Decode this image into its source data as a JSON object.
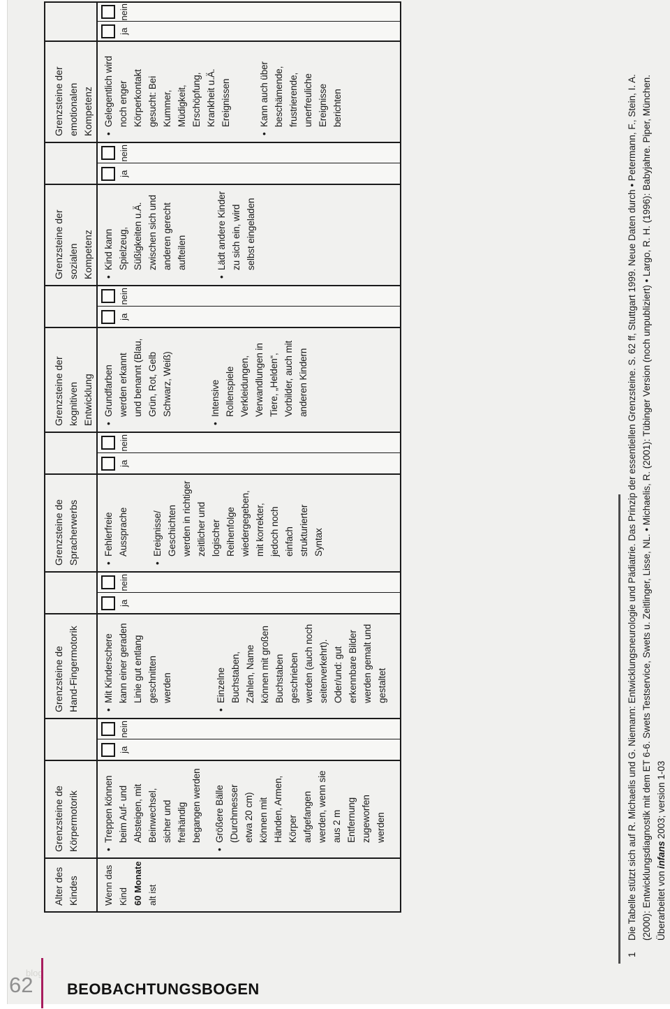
{
  "page": {
    "number": "62",
    "footer_title": "BEOBACHTUNGSBOGEN",
    "watermark": "blog"
  },
  "table": {
    "checkbox_labels": {
      "ja": "ja",
      "nein": "nein"
    },
    "columns": [
      {
        "key": "alter",
        "kind": "category",
        "title": "Alter des\nKindes",
        "age_lines": [
          {
            "t": "Wenn das"
          },
          {
            "t": "Kind"
          },
          {
            "t": "60 Monate",
            "bold": true
          },
          {
            "t": "alt ist"
          }
        ]
      },
      {
        "key": "koerpermotorik",
        "kind": "category",
        "title": "Grenzsteine de\nKörpermotorik",
        "bullets": [
          "Treppen können\nbeim Auf- und\nAbsteigen, mit\nBeinwechsel,\nsicher und\nfreihändig\nbegangen werden",
          "Größere Bälle\n(Durchmesser\netwa 20 cm)\nkönnen mit\nHänden, Armen,\nKörper\naufgefangen\nwerden, wenn sie\naus 2 m\nEntfernung\nzugeworfen\nwerden"
        ]
      },
      {
        "key": "koerpermotorik-janein",
        "kind": "checkbox"
      },
      {
        "key": "handfingermotorik",
        "kind": "category",
        "title": "Grenzsteine de\nHand-Fingermotorik",
        "bullets": [
          "Mit Kinderschere\nkann einer geraden\nLinie gut entlang\ngeschnitten\nwerden",
          "Einzelne\nBuchstaben,\nZahlen, Name\nkönnen mit großen\nBuchstaben\ngeschrieben\nwerden (auch noch\nseitenverkehrt).\nOder/und: gut\nerkennbare Bilder\nwerden gemalt und\ngestaltet"
        ]
      },
      {
        "key": "handfingermotorik-janein",
        "kind": "checkbox"
      },
      {
        "key": "spracherwerb",
        "kind": "category",
        "title": "Grenzsteine de\nSpracherwerbs",
        "bullets": [
          "Fehlerfreie\nAussprache",
          "Ereignisse/\nGeschichten\nwerden in richtiger\nzeitlicher und\nlogischer\nReihenfolge\nwiedergegeben,\nmit korrekter,\njedoch noch\neinfach\nstrukturierter\nSyntax"
        ]
      },
      {
        "key": "spracherwerb-janein",
        "kind": "checkbox"
      },
      {
        "key": "kognitive-entwicklung",
        "kind": "category",
        "title": "Grenzsteine der\nkognitiven\nEntwicklung",
        "bullets": [
          "Grundfarben\nwerden erkannt\nund benannt (Blau,\nGrün, Rot, Gelb\nSchwarz, Weiß)",
          "Intensive\nRollenspiele\nVerkleidungen,\nVerwandlungen in\nTiere, „Helden“,\nVorbilder, auch mit\nanderen Kindern"
        ]
      },
      {
        "key": "kognitive-entwicklung-janein",
        "kind": "checkbox"
      },
      {
        "key": "soziale-kompetenz",
        "kind": "category",
        "title": "Grenzsteine der\nsozialen\nKompetenz",
        "bullets": [
          "Kind kann\nSpielzeug,\nSüßigkeiten u.Ä.\nzwischen sich und\nanderen gerecht\naufteilen",
          "Lädt andere Kinder\nzu sich ein, wird\nselbst eingeladen"
        ]
      },
      {
        "key": "soziale-kompetenz-janein",
        "kind": "checkbox"
      },
      {
        "key": "emotionale-kompetenz",
        "kind": "category",
        "title": "Grenzsteine der\nemotionalen\nKompetenz",
        "bullets": [
          "Gelegentlich wird\nnoch enger\nKörperkontakt\ngesucht: Bei\nKummer,\nMüdigkeit,\nErschöpfung,\nKrankheit u.Ä.\nEreignissen",
          "Kann auch über\nbeschämende,\nfrustrierende,\nunerfreuliche\nEreignisse\nberichten"
        ]
      },
      {
        "key": "emotionale-kompetenz-janein",
        "kind": "checkbox"
      }
    ]
  },
  "footnote": {
    "line1_num": "1",
    "line1": "Die Tabelle stützt sich auf R. Michaelis und G. Niemann: Entwicklungsneurologie und Pädiatrie. Das Prinzip der essentiellen Grenzsteine. S. 62 ff, Stuttgart 1999. Neue Daten durch • Petermann, F., Stein, I. A.",
    "line2": "(2000): Entwicklungsdiagnostik mit dem ET 6-6. Swets Testservice, Swets u. Zeitlinger, Lisse, NL. • Michaelis, R. (2001): Tübinger Version (noch unpubliziert) • Largo, R. H. (1996): Babyjahre. Piper, München.",
    "line3_before": "Überarbeitet von",
    "line3_emph": "infans",
    "line3_after": "2003; version 1-03"
  },
  "colors": {
    "accent_line": "#a81d5e",
    "table_border": "#1b1b1b",
    "scan_background": "#f0f0ee"
  }
}
